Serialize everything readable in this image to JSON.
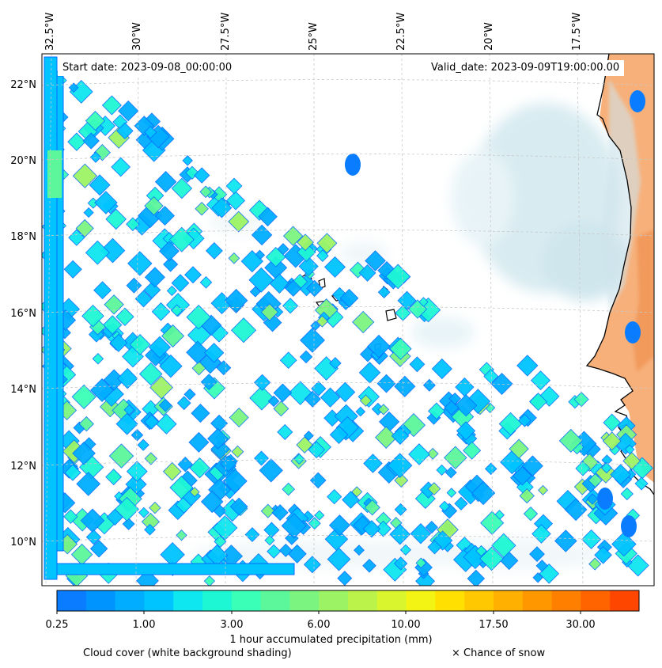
{
  "map": {
    "start_date": "Start date: 2023-09-08_00:00:00",
    "valid_date": "Valid_date: 2023-09-09T19:00:00.00",
    "lon_labels": [
      "32.5°W",
      "30°W",
      "27.5°W",
      "25°W",
      "22.5°W",
      "20°W",
      "17.5°W"
    ],
    "lat_labels": [
      "22°N",
      "20°N",
      "18°N",
      "16°N",
      "14°N",
      "12°N",
      "10°N"
    ],
    "colors": {
      "sea": "#ffffff",
      "cloud": "#b9dce6",
      "land": "#f4a46a",
      "coast": "#000000",
      "grid": "#c8c8c8"
    }
  },
  "colorbar": {
    "label": "1 hour accumulated precipitation (mm)",
    "tick_labels": [
      "0.25",
      "1.00",
      "3.00",
      "6.00",
      "10.00",
      "17.50",
      "30.00"
    ],
    "colors": [
      "#0a7cff",
      "#0094ff",
      "#00adff",
      "#00c4ff",
      "#0ee6f0",
      "#1ef7d4",
      "#3affb7",
      "#5cf79b",
      "#7cf580",
      "#9cf465",
      "#bbf34a",
      "#d9f52e",
      "#f4f414",
      "#ffe000",
      "#ffc800",
      "#ffb000",
      "#ff9800",
      "#ff7f00",
      "#ff6400",
      "#ff4600"
    ]
  },
  "legend": {
    "cloud_cover": "Cloud cover (white background shading)",
    "snow": "× Chance of snow"
  }
}
